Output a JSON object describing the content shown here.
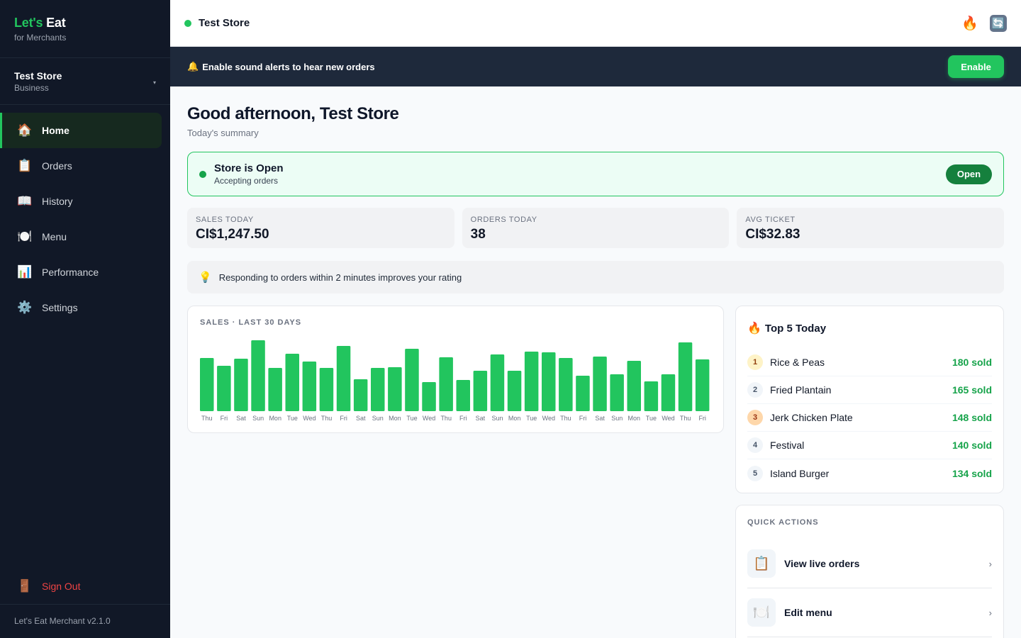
{
  "sidebar": {
    "brand": {
      "part1": "Let's",
      "part2": " Eat",
      "sub": "for Merchants"
    },
    "store": {
      "name": "Test Store",
      "type": "Business",
      "chevron": "▾"
    },
    "items": [
      {
        "label": "Home",
        "icon": "house-icon",
        "glyph": "🏠",
        "active": true
      },
      {
        "label": "Orders",
        "icon": "clipboard-icon",
        "glyph": "📋"
      },
      {
        "label": "History",
        "icon": "book-icon",
        "glyph": "📖"
      },
      {
        "label": "Menu",
        "icon": "plate-icon",
        "glyph": "🍽️"
      },
      {
        "label": "Performance",
        "icon": "bar-chart-icon",
        "glyph": "📊"
      },
      {
        "label": "Settings",
        "icon": "gear-icon",
        "glyph": "⚙️"
      }
    ],
    "signout": {
      "label": "Sign Out",
      "icon": "door-icon",
      "glyph": "🚪"
    },
    "version": "Let's Eat Merchant v2.1.0"
  },
  "topbar": {
    "store": "Test Store",
    "fire": "🔥",
    "refresh": "🔄"
  },
  "alert": {
    "bell": "🔔",
    "text": "Enable sound alerts to hear new orders",
    "button": "Enable"
  },
  "greeting": {
    "title": "Good afternoon, Test Store",
    "sub": "Today's summary"
  },
  "store_status": {
    "title": "Store is Open",
    "sub": "Accepting orders",
    "button": "Open"
  },
  "stats": [
    {
      "label": "SALES TODAY",
      "value": "CI$1,247.50"
    },
    {
      "label": "ORDERS TODAY",
      "value": "38"
    },
    {
      "label": "AVG TICKET",
      "value": "CI$32.83"
    }
  ],
  "tip": {
    "icon": "💡",
    "text": "Responding to orders within 2 minutes improves your rating"
  },
  "chart_data": {
    "type": "bar",
    "title": "SALES · LAST 30 DAYS",
    "categories": [
      "Thu",
      "Fri",
      "Sat",
      "Sun",
      "Mon",
      "Tue",
      "Wed",
      "Thu",
      "Fri",
      "Sat",
      "Sun",
      "Mon",
      "Tue",
      "Wed",
      "Thu",
      "Fri",
      "Sat",
      "Sun",
      "Mon",
      "Tue",
      "Wed",
      "Thu",
      "Fri",
      "Sat",
      "Sun",
      "Mon",
      "Tue",
      "Wed",
      "Thu",
      "Fri"
    ],
    "values": [
      75,
      64,
      74,
      100,
      61,
      81,
      70,
      61,
      92,
      45,
      61,
      62,
      88,
      41,
      76,
      44,
      57,
      80,
      57,
      84,
      83,
      75,
      50,
      77,
      52,
      71,
      42,
      52,
      97,
      73
    ],
    "color": "#22c55e",
    "ylim": [
      0,
      100
    ],
    "grid": false
  },
  "top5": {
    "title": "Top 5 Today",
    "fire": "🔥",
    "items": [
      {
        "rank": "1",
        "name": "Rice & Peas",
        "sold": "180 sold"
      },
      {
        "rank": "2",
        "name": "Fried Plantain",
        "sold": "165 sold"
      },
      {
        "rank": "3",
        "name": "Jerk Chicken Plate",
        "sold": "148 sold"
      },
      {
        "rank": "4",
        "name": "Festival",
        "sold": "140 sold"
      },
      {
        "rank": "5",
        "name": "Island Burger",
        "sold": "134 sold"
      }
    ]
  },
  "quick_actions": {
    "title": "QUICK ACTIONS",
    "items": [
      {
        "label": "View live orders",
        "glyph": "📋",
        "chevron": "›"
      },
      {
        "label": "Edit menu",
        "glyph": "🍽️",
        "chevron": "›"
      }
    ]
  }
}
